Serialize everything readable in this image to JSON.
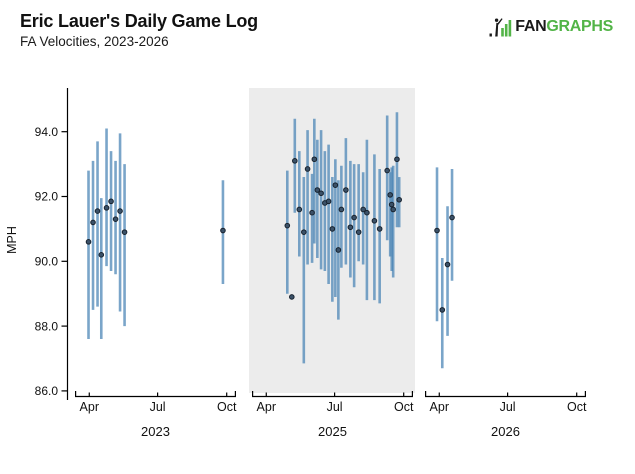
{
  "header": {
    "title": "Eric Lauer's Daily Game Log",
    "subtitle": "FA Velocities, 2023-2026"
  },
  "logo": {
    "fan": "FAN",
    "graphs": "GRAPHS"
  },
  "chart_data": {
    "type": "scatter",
    "title": "Eric Lauer's Daily Game Log",
    "subtitle": "FA Velocities, 2023-2026",
    "ylabel": "MPH",
    "xlabel": "",
    "y_ticks": [
      "86.0",
      "88.0",
      "90.0",
      "92.0",
      "94.0"
    ],
    "ylim": [
      85.8,
      95.4
    ],
    "x_tick_months": [
      "Apr",
      "Jul",
      "Oct"
    ],
    "grid": false,
    "legend": "none",
    "point_format": [
      "date",
      "min_mph",
      "avg_mph",
      "max_mph"
    ],
    "panels": [
      {
        "year": "2023",
        "highlighted": false,
        "points": [
          [
            "2023-03-31",
            87.6,
            90.6,
            92.8
          ],
          [
            "2023-04-06",
            88.5,
            91.2,
            93.1
          ],
          [
            "2023-04-12",
            88.6,
            91.55,
            93.7
          ],
          [
            "2023-04-17",
            87.6,
            90.2,
            91.95
          ],
          [
            "2023-04-24",
            89.85,
            91.65,
            94.1
          ],
          [
            "2023-04-30",
            89.7,
            91.85,
            93.4
          ],
          [
            "2023-05-06",
            89.6,
            91.3,
            93.1
          ],
          [
            "2023-05-12",
            88.45,
            91.55,
            93.95
          ],
          [
            "2023-05-18",
            88.0,
            90.9,
            93.0
          ],
          [
            "2023-09-26",
            89.3,
            90.95,
            92.5
          ]
        ]
      },
      {
        "year": "2025",
        "highlighted": true,
        "points": [
          [
            "2025-04-29",
            89.0,
            91.1,
            92.8
          ],
          [
            "2025-05-05",
            88.9,
            88.9,
            88.9
          ],
          [
            "2025-05-09",
            91.5,
            93.1,
            94.4
          ],
          [
            "2025-05-15",
            90.15,
            91.6,
            93.4
          ],
          [
            "2025-05-21",
            86.85,
            90.9,
            92.6
          ],
          [
            "2025-05-26",
            89.9,
            92.85,
            94.05
          ],
          [
            "2025-06-01",
            89.95,
            91.5,
            92.7
          ],
          [
            "2025-06-04",
            90.55,
            93.15,
            94.4
          ],
          [
            "2025-06-08",
            90.1,
            92.2,
            93.75
          ],
          [
            "2025-06-13",
            89.75,
            92.1,
            94.05
          ],
          [
            "2025-06-18",
            89.7,
            91.8,
            93.4
          ],
          [
            "2025-06-23",
            89.3,
            91.85,
            93.6
          ],
          [
            "2025-06-28",
            88.75,
            91.0,
            92.6
          ],
          [
            "2025-07-02",
            88.9,
            92.35,
            93.15
          ],
          [
            "2025-07-06",
            88.2,
            90.35,
            92.5
          ],
          [
            "2025-07-10",
            89.8,
            91.6,
            92.95
          ],
          [
            "2025-07-16",
            89.9,
            92.2,
            93.8
          ],
          [
            "2025-07-22",
            89.5,
            91.05,
            93.1
          ],
          [
            "2025-07-27",
            89.2,
            91.35,
            93.0
          ],
          [
            "2025-08-02",
            90.0,
            90.9,
            93.0
          ],
          [
            "2025-08-08",
            89.9,
            91.6,
            92.75
          ],
          [
            "2025-08-13",
            88.8,
            91.5,
            93.75
          ],
          [
            "2025-08-23",
            88.8,
            91.25,
            93.3
          ],
          [
            "2025-08-30",
            88.7,
            91.0,
            92.85
          ],
          [
            "2025-09-09",
            90.65,
            92.8,
            94.5
          ],
          [
            "2025-09-13",
            90.15,
            92.05,
            92.75
          ],
          [
            "2025-09-15",
            89.7,
            91.75,
            92.9
          ],
          [
            "2025-09-17",
            89.5,
            91.6,
            92.95
          ],
          [
            "2025-09-22",
            91.05,
            93.15,
            94.6
          ],
          [
            "2025-09-25",
            91.05,
            91.9,
            92.6
          ]
        ]
      },
      {
        "year": "2026",
        "highlighted": false,
        "points": [
          [
            "2026-03-29",
            88.15,
            90.95,
            92.9
          ],
          [
            "2026-04-05",
            86.7,
            88.5,
            90.1
          ],
          [
            "2026-04-12",
            87.7,
            89.9,
            91.7
          ],
          [
            "2026-04-18",
            89.4,
            91.35,
            92.85
          ]
        ]
      }
    ],
    "colors": {
      "range_line": "#4682B4",
      "range_opacity": 0.72,
      "dot_fill": "#3b5168",
      "dot_stroke": "#17222e",
      "highlight_bg": "#ececec",
      "axis": "#000000",
      "text": "#111111",
      "logo_green": "#52B447",
      "logo_dark": "#1a1a1a"
    }
  }
}
